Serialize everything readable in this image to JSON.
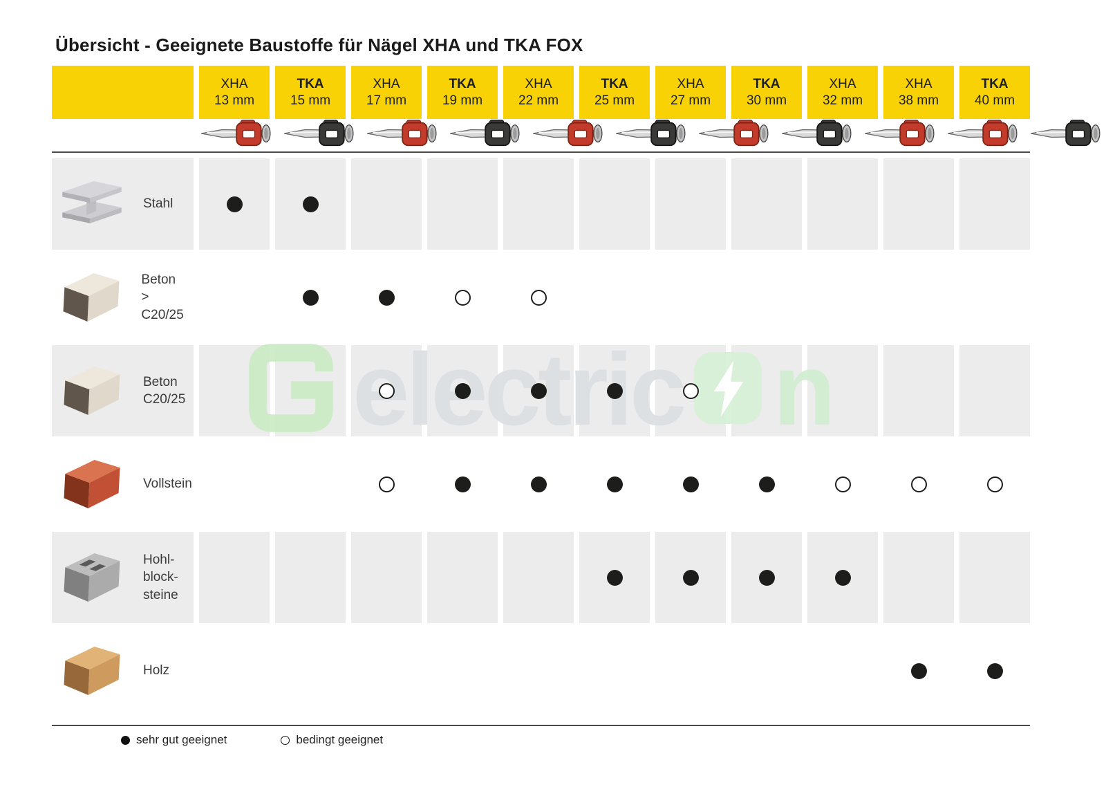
{
  "title": "Übersicht - Geeignete Baustoffe für Nägel XHA und TKA FOX",
  "header": {
    "columns": [
      {
        "type": "XHA",
        "size": "13 mm",
        "nail_color": "red"
      },
      {
        "type": "TKA",
        "size": "15 mm",
        "nail_color": "black"
      },
      {
        "type": "XHA",
        "size": "17 mm",
        "nail_color": "red"
      },
      {
        "type": "TKA",
        "size": "19 mm",
        "nail_color": "black"
      },
      {
        "type": "XHA",
        "size": "22 mm",
        "nail_color": "red"
      },
      {
        "type": "TKA",
        "size": "25 mm",
        "nail_color": "black"
      },
      {
        "type": "XHA",
        "size": "27 mm",
        "nail_color": "red"
      },
      {
        "type": "TKA",
        "size": "30 mm",
        "nail_color": "black"
      },
      {
        "type": "XHA",
        "size": "32 mm",
        "nail_color": "red"
      },
      {
        "type": "XHA",
        "size": "38 mm",
        "nail_color": "red"
      },
      {
        "type": "TKA",
        "size": "40 mm",
        "nail_color": "black"
      }
    ]
  },
  "rows": [
    {
      "label": "Stahl",
      "lines": [
        "Stahl"
      ],
      "icon": "steel-ibeam-icon",
      "shaded": true,
      "cells": [
        "filled",
        "filled",
        "",
        "",
        "",
        "",
        "",
        "",
        "",
        "",
        ""
      ]
    },
    {
      "label": "Beton > C20/25",
      "lines": [
        "Beton",
        "> C20/25"
      ],
      "icon": "concrete-block-icon",
      "shaded": false,
      "cells": [
        "",
        "filled",
        "filled",
        "open",
        "open",
        "",
        "",
        "",
        "",
        "",
        ""
      ]
    },
    {
      "label": "Beton C20/25",
      "lines": [
        "Beton",
        "C20/25"
      ],
      "icon": "concrete-block-icon",
      "shaded": true,
      "cells": [
        "",
        "",
        "open",
        "filled",
        "filled",
        "filled",
        "open",
        "",
        "",
        "",
        ""
      ]
    },
    {
      "label": "Vollstein",
      "lines": [
        "Vollstein"
      ],
      "icon": "solid-brick-icon",
      "shaded": false,
      "cells": [
        "",
        "",
        "open",
        "filled",
        "filled",
        "filled",
        "filled",
        "filled",
        "open",
        "open",
        "open"
      ]
    },
    {
      "label": "Hohlblocksteine",
      "lines": [
        "Hohl-",
        "block-",
        "steine"
      ],
      "icon": "hollow-block-icon",
      "shaded": true,
      "cells": [
        "",
        "",
        "",
        "",
        "",
        "filled",
        "filled",
        "filled",
        "filled",
        "",
        ""
      ]
    },
    {
      "label": "Holz",
      "lines": [
        "Holz"
      ],
      "icon": "wood-block-icon",
      "shaded": false,
      "cells": [
        "",
        "",
        "",
        "",
        "",
        "",
        "",
        "",
        "",
        "filled",
        "filled"
      ]
    }
  ],
  "legend": {
    "items": [
      {
        "marker": "filled",
        "label": "sehr gut geeignet"
      },
      {
        "marker": "open",
        "label": "bedingt geeignet"
      }
    ]
  },
  "watermark": {
    "prefix": "electric",
    "suffix": "n",
    "bolt": "lightning-bolt-icon",
    "logo": "g-logo-icon"
  },
  "colors": {
    "header_yellow": "#F8D205",
    "cell_gray": "#ECECEC",
    "dot_black": "#1D1D1B",
    "nail_red": "#C23B2B",
    "nail_black": "#3A3A38",
    "watermark_green": "#D2EED2",
    "watermark_gray": "#DCE0E3"
  },
  "chart_data": {
    "type": "table",
    "title": "Übersicht - Geeignete Baustoffe für Nägel XHA und TKA FOX",
    "columns": [
      "XHA 13 mm",
      "TKA 15 mm",
      "XHA 17 mm",
      "TKA 19 mm",
      "XHA 22 mm",
      "TKA 25 mm",
      "XHA 27 mm",
      "TKA 30 mm",
      "XHA 32 mm",
      "XHA 38 mm",
      "TKA 40 mm"
    ],
    "rows": [
      "Stahl",
      "Beton > C20/25",
      "Beton C20/25",
      "Vollstein",
      "Hohlblocksteine",
      "Holz"
    ],
    "values": [
      [
        "sehr gut geeignet",
        "sehr gut geeignet",
        null,
        null,
        null,
        null,
        null,
        null,
        null,
        null,
        null
      ],
      [
        null,
        "sehr gut geeignet",
        "sehr gut geeignet",
        "bedingt geeignet",
        "bedingt geeignet",
        null,
        null,
        null,
        null,
        null,
        null
      ],
      [
        null,
        null,
        "bedingt geeignet",
        "sehr gut geeignet",
        "sehr gut geeignet",
        "sehr gut geeignet",
        "bedingt geeignet",
        null,
        null,
        null,
        null
      ],
      [
        null,
        null,
        "bedingt geeignet",
        "sehr gut geeignet",
        "sehr gut geeignet",
        "sehr gut geeignet",
        "sehr gut geeignet",
        "sehr gut geeignet",
        "bedingt geeignet",
        "bedingt geeignet",
        "bedingt geeignet"
      ],
      [
        null,
        null,
        null,
        null,
        null,
        "sehr gut geeignet",
        "sehr gut geeignet",
        "sehr gut geeignet",
        "sehr gut geeignet",
        null,
        null
      ],
      [
        null,
        null,
        null,
        null,
        null,
        null,
        null,
        null,
        null,
        "sehr gut geeignet",
        "sehr gut geeignet"
      ]
    ],
    "legend": {
      "filled": "sehr gut geeignet",
      "open": "bedingt geeignet"
    }
  }
}
